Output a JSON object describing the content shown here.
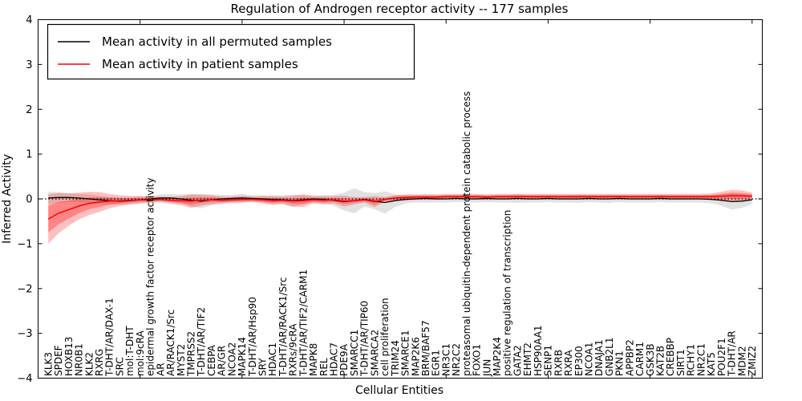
{
  "chart_data": {
    "type": "line",
    "title": "Regulation of Androgen receptor activity -- 177 samples",
    "xlabel": "Cellular Entities",
    "ylabel": "Inferred Activity",
    "ylim": [
      -4,
      4
    ],
    "yticks": [
      -4,
      -3,
      -2,
      -1,
      0,
      1,
      2,
      3,
      4
    ],
    "grid": false,
    "zero_line": {
      "value": 0,
      "style": "dotted",
      "color": "#000000"
    },
    "legend_position": "upper-left",
    "top_tick_indices": [
      9,
      19,
      29,
      39,
      49,
      59,
      69
    ],
    "categories": [
      "KLK3",
      "SPDEF",
      "HOXB13",
      "NR0B1",
      "KLK2",
      "RXRG",
      "T-DHT/AR/DAX-1",
      "SRC",
      "mol:T-DHT",
      "mol:9cRA",
      "epidermal growth factor receptor activity",
      "AR",
      "AR/RACK1/Src",
      "MYST2",
      "TMPRSS2",
      "T-DHT/AR/TIF2",
      "CEBPA",
      "AR/GR",
      "NCOA2",
      "MAPK14",
      "T-DHT/AR/Hsp90",
      "SRY",
      "HDAC1",
      "T-DHT/AR/RACK1/Src",
      "RXRs/9cRA",
      "T-DHT/AR/TIF2/CARM1",
      "MAPK8",
      "REL",
      "HDAC7",
      "PDE9A",
      "SMARCC1",
      "T-DHT/AR/TIP60",
      "SMARCA2",
      "cell proliferation",
      "TRIM24",
      "SMARCE1",
      "MAP2K6",
      "BRM/BAF57",
      "EGR1",
      "NR3C1",
      "NR2C2",
      "proteasomal ubiquitin-dependent protein catabolic process",
      "FOXO1",
      "JUN",
      "MAP2K4",
      "positive regulation of transcription",
      "GATA2",
      "EHMT2",
      "HSP90AA1",
      "SENP1",
      "RXRB",
      "RXRA",
      "EP300",
      "NCOA1",
      "DNAJA1",
      "GNB2L1",
      "PKN1",
      "APPBP2",
      "CARM1",
      "GSK3B",
      "KAT2B",
      "CREBBP",
      "SIRT1",
      "RCHY1",
      "NR2C1",
      "KAT5",
      "POU2F1",
      "T-DHT/AR",
      "MDM2",
      "ZMIZ2"
    ],
    "series": [
      {
        "name": "Mean activity in all permuted samples",
        "color": "#000000",
        "band_color": "#888888",
        "band_alpha": 0.25,
        "values": [
          0.02,
          0.03,
          0.03,
          0.02,
          0.0,
          -0.02,
          -0.04,
          -0.05,
          -0.04,
          -0.02,
          0.0,
          0.02,
          0.02,
          0.0,
          -0.03,
          -0.05,
          -0.02,
          0.0,
          0.01,
          0.02,
          0.01,
          0.0,
          -0.01,
          -0.02,
          -0.04,
          -0.02,
          0.0,
          -0.01,
          -0.03,
          -0.06,
          -0.04,
          -0.01,
          -0.05,
          -0.08,
          -0.04,
          -0.01,
          0.0,
          0.01,
          0.0,
          0.0,
          0.01,
          0.0,
          0.0,
          0.01,
          0.0,
          0.0,
          0.01,
          0.0,
          0.0,
          0.01,
          0.0,
          0.0,
          0.0,
          0.01,
          0.0,
          0.0,
          0.01,
          0.0,
          0.0,
          0.0,
          0.01,
          0.0,
          0.0,
          0.0,
          0.0,
          -0.01,
          -0.03,
          -0.06,
          -0.05,
          -0.02
        ],
        "band_halfwidth": [
          0.14,
          0.12,
          0.1,
          0.09,
          0.1,
          0.09,
          0.08,
          0.08,
          0.07,
          0.08,
          0.07,
          0.08,
          0.09,
          0.1,
          0.14,
          0.16,
          0.12,
          0.09,
          0.08,
          0.09,
          0.07,
          0.08,
          0.09,
          0.1,
          0.14,
          0.1,
          0.08,
          0.09,
          0.12,
          0.2,
          0.28,
          0.16,
          0.18,
          0.25,
          0.14,
          0.09,
          0.08,
          0.09,
          0.08,
          0.08,
          0.08,
          0.08,
          0.08,
          0.08,
          0.08,
          0.08,
          0.1,
          0.08,
          0.08,
          0.08,
          0.08,
          0.08,
          0.09,
          0.08,
          0.08,
          0.09,
          0.08,
          0.08,
          0.08,
          0.08,
          0.08,
          0.08,
          0.08,
          0.08,
          0.08,
          0.09,
          0.12,
          0.18,
          0.15,
          0.1
        ]
      },
      {
        "name": "Mean activity in patient samples",
        "color": "#ff0000",
        "band_color": "#ff0000",
        "band_alpha": 0.25,
        "values": [
          -0.45,
          -0.32,
          -0.24,
          -0.16,
          -0.1,
          -0.07,
          -0.05,
          -0.04,
          -0.03,
          -0.02,
          -0.02,
          -0.01,
          -0.03,
          -0.04,
          -0.05,
          -0.03,
          -0.02,
          -0.03,
          -0.02,
          -0.01,
          -0.01,
          -0.02,
          -0.04,
          -0.03,
          -0.05,
          -0.04,
          -0.02,
          -0.03,
          -0.02,
          -0.05,
          -0.04,
          -0.02,
          -0.06,
          -0.01,
          0.02,
          0.03,
          0.04,
          0.04,
          0.04,
          0.05,
          0.05,
          0.05,
          0.05,
          0.04,
          0.05,
          0.05,
          0.05,
          0.05,
          0.05,
          0.05,
          0.05,
          0.05,
          0.05,
          0.05,
          0.05,
          0.05,
          0.05,
          0.05,
          0.05,
          0.05,
          0.05,
          0.05,
          0.05,
          0.05,
          0.05,
          0.05,
          0.06,
          0.07,
          0.07,
          0.06
        ],
        "band_outer_halfwidth": [
          0.55,
          0.45,
          0.36,
          0.3,
          0.26,
          0.22,
          0.16,
          0.12,
          0.1,
          0.08,
          0.07,
          0.06,
          0.08,
          0.1,
          0.15,
          0.12,
          0.1,
          0.08,
          0.07,
          0.08,
          0.06,
          0.08,
          0.1,
          0.08,
          0.12,
          0.14,
          0.08,
          0.09,
          0.08,
          0.12,
          0.08,
          0.06,
          0.12,
          0.05,
          0.06,
          0.07,
          0.06,
          0.06,
          0.06,
          0.06,
          0.06,
          0.06,
          0.06,
          0.06,
          0.06,
          0.06,
          0.06,
          0.06,
          0.06,
          0.06,
          0.06,
          0.06,
          0.06,
          0.06,
          0.06,
          0.06,
          0.06,
          0.06,
          0.06,
          0.06,
          0.06,
          0.06,
          0.06,
          0.06,
          0.06,
          0.07,
          0.1,
          0.13,
          0.12,
          0.08
        ],
        "band_inner_halfwidth": [
          0.3,
          0.25,
          0.2,
          0.16,
          0.13,
          0.11,
          0.08,
          0.06,
          0.05,
          0.04,
          0.04,
          0.03,
          0.04,
          0.05,
          0.08,
          0.06,
          0.05,
          0.04,
          0.04,
          0.04,
          0.03,
          0.04,
          0.05,
          0.04,
          0.06,
          0.07,
          0.04,
          0.05,
          0.04,
          0.06,
          0.04,
          0.03,
          0.06,
          0.03,
          0.03,
          0.04,
          0.03,
          0.03,
          0.03,
          0.03,
          0.03,
          0.03,
          0.03,
          0.03,
          0.03,
          0.03,
          0.03,
          0.03,
          0.03,
          0.03,
          0.03,
          0.03,
          0.03,
          0.03,
          0.03,
          0.03,
          0.03,
          0.03,
          0.03,
          0.03,
          0.03,
          0.03,
          0.03,
          0.03,
          0.03,
          0.04,
          0.05,
          0.07,
          0.06,
          0.04
        ]
      }
    ]
  }
}
